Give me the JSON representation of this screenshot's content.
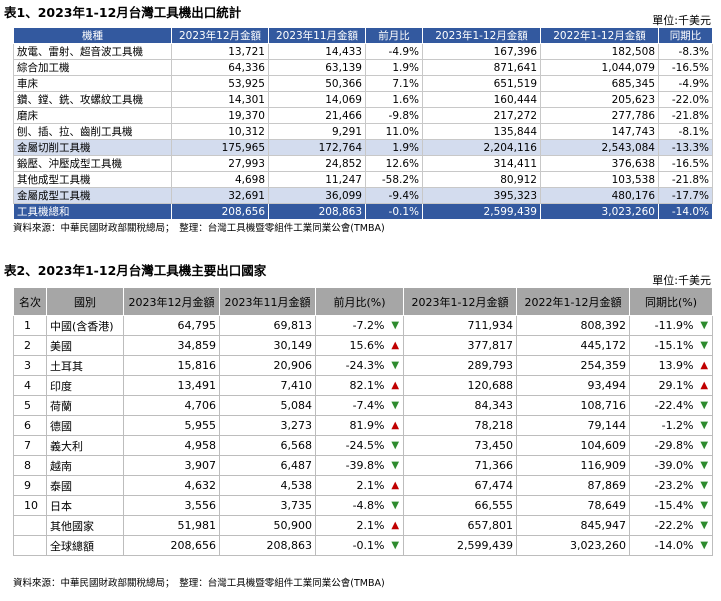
{
  "table1": {
    "title": "表1、2023年1-12月台灣工具機出口統計",
    "unit": "單位:千美元",
    "headers": [
      "機種",
      "2023年12月金額",
      "2023年11月金額",
      "前月比",
      "2023年1-12月金額",
      "2022年1-12月金額",
      "同期比"
    ],
    "rows": [
      [
        "放電、雷射、超音波工具機",
        "13,721",
        "14,433",
        "-4.9%",
        "167,396",
        "182,508",
        "-8.3%"
      ],
      [
        "綜合加工機",
        "64,336",
        "63,139",
        "1.9%",
        "871,641",
        "1,044,079",
        "-16.5%"
      ],
      [
        "車床",
        "53,925",
        "50,366",
        "7.1%",
        "651,519",
        "685,345",
        "-4.9%"
      ],
      [
        "鑽、鏜、銑、攻螺紋工具機",
        "14,301",
        "14,069",
        "1.6%",
        "160,444",
        "205,623",
        "-22.0%"
      ],
      [
        "磨床",
        "19,370",
        "21,466",
        "-9.8%",
        "217,272",
        "277,786",
        "-21.8%"
      ],
      [
        "刨、插、拉、齒削工具機",
        "10,312",
        "9,291",
        "11.0%",
        "135,844",
        "147,743",
        "-8.1%"
      ],
      [
        "金屬切削工具機",
        "175,965",
        "172,764",
        "1.9%",
        "2,204,116",
        "2,543,084",
        "-13.3%"
      ],
      [
        "鍛壓、沖壓成型工具機",
        "27,993",
        "24,852",
        "12.6%",
        "314,411",
        "376,638",
        "-16.5%"
      ],
      [
        "其他成型工具機",
        "4,698",
        "11,247",
        "-58.2%",
        "80,912",
        "103,538",
        "-21.8%"
      ],
      [
        "金屬成型工具機",
        "32,691",
        "36,099",
        "-9.4%",
        "395,323",
        "480,176",
        "-17.7%"
      ],
      [
        "工具機總和",
        "208,656",
        "208,863",
        "-0.1%",
        "2,599,439",
        "3,023,260",
        "-14.0%"
      ]
    ],
    "source": "資料來源：中華民國財政部關稅總局；　整理：台灣工具機暨零組件工業同業公會(TMBA)"
  },
  "table2": {
    "title": "表2、2023年1-12月台灣工具機主要出口國家",
    "unit": "單位:千美元",
    "headers": [
      "名次",
      "國別",
      "2023年12月金額",
      "2023年11月金額",
      "前月比(%)",
      "2023年1-12月金額",
      "2022年1-12月金額",
      "同期比(%)"
    ],
    "rows": [
      [
        "1",
        "中國(含香港)",
        "64,795",
        "69,813",
        "-7.2%",
        "down",
        "711,934",
        "808,392",
        "-11.9%",
        "down"
      ],
      [
        "2",
        "美國",
        "34,859",
        "30,149",
        "15.6%",
        "up",
        "377,817",
        "445,172",
        "-15.1%",
        "down"
      ],
      [
        "3",
        "土耳其",
        "15,816",
        "20,906",
        "-24.3%",
        "down",
        "289,793",
        "254,359",
        "13.9%",
        "up"
      ],
      [
        "4",
        "印度",
        "13,491",
        "7,410",
        "82.1%",
        "up",
        "120,688",
        "93,494",
        "29.1%",
        "up"
      ],
      [
        "5",
        "荷蘭",
        "4,706",
        "5,084",
        "-7.4%",
        "down",
        "84,343",
        "108,716",
        "-22.4%",
        "down"
      ],
      [
        "6",
        "德國",
        "5,955",
        "3,273",
        "81.9%",
        "up",
        "78,218",
        "79,144",
        "-1.2%",
        "down"
      ],
      [
        "7",
        "義大利",
        "4,958",
        "6,568",
        "-24.5%",
        "down",
        "73,450",
        "104,609",
        "-29.8%",
        "down"
      ],
      [
        "8",
        "越南",
        "3,907",
        "6,487",
        "-39.8%",
        "down",
        "71,366",
        "116,909",
        "-39.0%",
        "down"
      ],
      [
        "9",
        "泰國",
        "4,632",
        "4,538",
        "2.1%",
        "up",
        "67,474",
        "87,869",
        "-23.2%",
        "down"
      ],
      [
        "10",
        "日本",
        "3,556",
        "3,735",
        "-4.8%",
        "down",
        "66,555",
        "78,649",
        "-15.4%",
        "down"
      ],
      [
        "",
        "其他國家",
        "51,981",
        "50,900",
        "2.1%",
        "up",
        "657,801",
        "845,947",
        "-22.2%",
        "down"
      ],
      [
        "",
        "全球總額",
        "208,656",
        "208,863",
        "-0.1%",
        "down",
        "2,599,439",
        "3,023,260",
        "-14.0%",
        "down"
      ]
    ],
    "source": "資料來源：中華民國財政部關稅總局；　整理：台灣工具機暨零組件工業同業公會(TMBA)"
  },
  "colors": {
    "header_blue": "#33599f",
    "subtotal_blue": "#d3dcee",
    "header_gray": "#a6a6a6",
    "up_red": "#c00000",
    "down_green": "#2e8b2e"
  }
}
